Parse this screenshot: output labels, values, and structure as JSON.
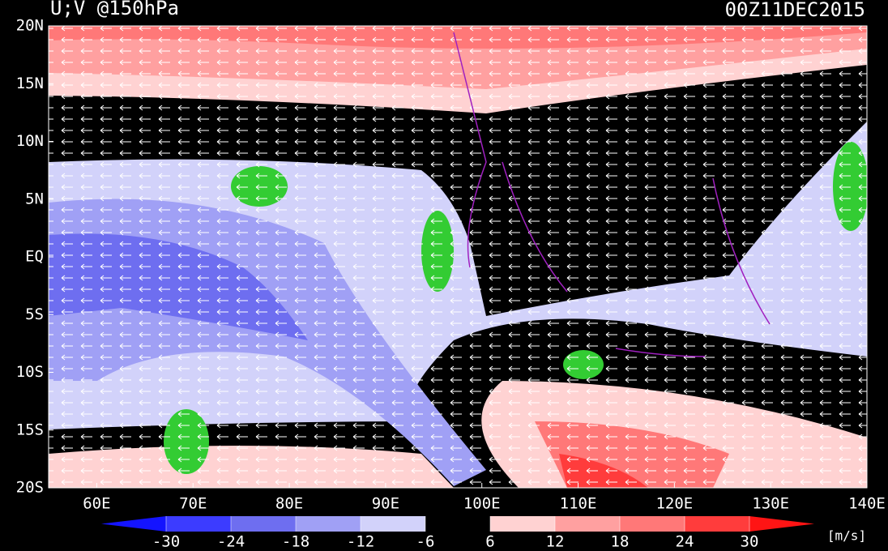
{
  "title": "U;V @150hPa",
  "date": "00Z11DEC2015",
  "map": {
    "lon_range": [
      55,
      140
    ],
    "lat_range": [
      -20,
      20
    ],
    "lat_ticks": [
      {
        "value": 20,
        "label": "20N"
      },
      {
        "value": 15,
        "label": "15N"
      },
      {
        "value": 10,
        "label": "10N"
      },
      {
        "value": 5,
        "label": "5N"
      },
      {
        "value": 0,
        "label": "EQ"
      },
      {
        "value": -5,
        "label": "5S"
      },
      {
        "value": -10,
        "label": "10S"
      },
      {
        "value": -15,
        "label": "15S"
      },
      {
        "value": -20,
        "label": "20S"
      }
    ],
    "lon_ticks": [
      {
        "value": 60,
        "label": "60E"
      },
      {
        "value": 70,
        "label": "70E"
      },
      {
        "value": 80,
        "label": "80E"
      },
      {
        "value": 90,
        "label": "90E"
      },
      {
        "value": 100,
        "label": "100E"
      },
      {
        "value": 110,
        "label": "110E"
      },
      {
        "value": 120,
        "label": "120E"
      },
      {
        "value": 130,
        "label": "130E"
      },
      {
        "value": 140,
        "label": "140E"
      }
    ]
  },
  "colorbar": {
    "levels": [
      -30,
      -24,
      -18,
      -12,
      -6,
      6,
      12,
      18,
      24,
      30
    ],
    "colors": [
      "#1414ff",
      "#3c3cff",
      "#6e6ef0",
      "#a0a0f5",
      "#d2d2fa",
      "#000000",
      "#ffd2d2",
      "#ffa0a0",
      "#ff7878",
      "#ff3c3c",
      "#ff1414"
    ],
    "unit": "[m/s]"
  }
}
